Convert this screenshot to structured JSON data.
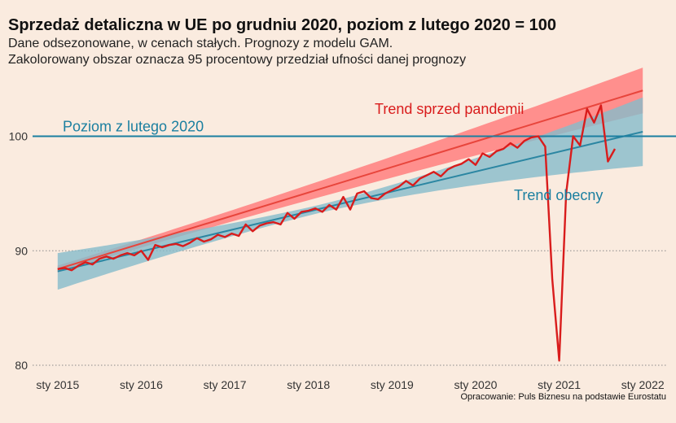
{
  "title": "Sprzedaż detaliczna w UE po grudniu 2020, poziom z lutego 2020 = 100",
  "subtitle_line1": "Dane odsezonowane, w cenach stałych. Prognozy z modelu GAM.",
  "subtitle_line2": "Zakolorowany obszar oznacza 95 procentowy przedział ufności danej prognozy",
  "caption": "Opracowanie: Puls Biznesu na podstawie Eurostatu",
  "chart_data": {
    "type": "line",
    "ylim": [
      79.5,
      104.8
    ],
    "y_ticks": [
      80,
      90,
      100
    ],
    "x_tick_labels": [
      "sty 2015",
      "sty 2016",
      "sty 2017",
      "sty 2018",
      "sty 2019",
      "sty 2020",
      "sty 2021",
      "sty 2022"
    ],
    "x_tick_years": [
      2015,
      2016,
      2017,
      2018,
      2019,
      2020,
      2021,
      2022
    ],
    "xlim": [
      2014.7,
      2022.3
    ],
    "grid": "horizontal dotted at y ticks",
    "reference_line": {
      "label": "Poziom z lutego 2020",
      "value": 100
    },
    "annotations": {
      "pre_pandemic": "Trend sprzed pandemii",
      "current": "Trend obecny"
    },
    "colors": {
      "background": "#faebdf",
      "actual": "#d91c1c",
      "pre_trend": "#e8453c",
      "pre_band": "#ff7f7f",
      "current_trend": "#2b86a2",
      "current_band": "#86bccb",
      "reference": "#1b7fa0"
    },
    "actual_series": [
      [
        2015.0,
        88.4
      ],
      [
        2015.083,
        88.5
      ],
      [
        2015.167,
        88.3
      ],
      [
        2015.25,
        88.7
      ],
      [
        2015.333,
        89.0
      ],
      [
        2015.417,
        88.8
      ],
      [
        2015.5,
        89.3
      ],
      [
        2015.583,
        89.5
      ],
      [
        2015.667,
        89.3
      ],
      [
        2015.75,
        89.6
      ],
      [
        2015.833,
        89.8
      ],
      [
        2015.917,
        89.6
      ],
      [
        2016.0,
        90.0
      ],
      [
        2016.083,
        89.2
      ],
      [
        2016.167,
        90.5
      ],
      [
        2016.25,
        90.3
      ],
      [
        2016.333,
        90.5
      ],
      [
        2016.417,
        90.6
      ],
      [
        2016.5,
        90.4
      ],
      [
        2016.583,
        90.7
      ],
      [
        2016.667,
        91.1
      ],
      [
        2016.75,
        90.8
      ],
      [
        2016.833,
        91.0
      ],
      [
        2016.917,
        91.4
      ],
      [
        2017.0,
        91.2
      ],
      [
        2017.083,
        91.5
      ],
      [
        2017.167,
        91.3
      ],
      [
        2017.25,
        92.3
      ],
      [
        2017.333,
        91.7
      ],
      [
        2017.417,
        92.2
      ],
      [
        2017.5,
        92.4
      ],
      [
        2017.583,
        92.5
      ],
      [
        2017.667,
        92.3
      ],
      [
        2017.75,
        93.3
      ],
      [
        2017.833,
        92.8
      ],
      [
        2017.917,
        93.4
      ],
      [
        2018.0,
        93.5
      ],
      [
        2018.083,
        93.7
      ],
      [
        2018.167,
        93.4
      ],
      [
        2018.25,
        94.0
      ],
      [
        2018.333,
        93.6
      ],
      [
        2018.417,
        94.7
      ],
      [
        2018.5,
        93.6
      ],
      [
        2018.583,
        95.0
      ],
      [
        2018.667,
        95.2
      ],
      [
        2018.75,
        94.6
      ],
      [
        2018.833,
        94.5
      ],
      [
        2018.917,
        95.0
      ],
      [
        2019.0,
        95.3
      ],
      [
        2019.083,
        95.6
      ],
      [
        2019.167,
        96.1
      ],
      [
        2019.25,
        95.7
      ],
      [
        2019.333,
        96.3
      ],
      [
        2019.417,
        96.6
      ],
      [
        2019.5,
        96.9
      ],
      [
        2019.583,
        96.5
      ],
      [
        2019.667,
        97.1
      ],
      [
        2019.75,
        97.4
      ],
      [
        2019.833,
        97.6
      ],
      [
        2019.917,
        98.0
      ],
      [
        2020.0,
        97.5
      ],
      [
        2020.083,
        98.5
      ],
      [
        2020.167,
        98.2
      ],
      [
        2020.25,
        98.7
      ],
      [
        2020.333,
        98.9
      ],
      [
        2020.417,
        99.4
      ],
      [
        2020.5,
        99.0
      ],
      [
        2020.583,
        99.6
      ],
      [
        2020.667,
        99.9
      ],
      [
        2020.75,
        100.0
      ],
      [
        2020.833,
        99.1
      ],
      [
        2020.917,
        87.5
      ],
      [
        2021.0,
        80.4
      ],
      [
        2021.083,
        95.0
      ],
      [
        2021.167,
        100.0
      ],
      [
        2021.25,
        99.2
      ],
      [
        2021.333,
        102.4
      ],
      [
        2021.417,
        101.2
      ],
      [
        2021.5,
        102.7
      ],
      [
        2021.583,
        97.8
      ],
      [
        2021.667,
        98.9
      ]
    ],
    "pre_pandemic_trend": {
      "x_start": 2015.0,
      "x_end": 2022.0,
      "y_start": 88.4,
      "y_end": 104.0,
      "band_half_width_start": 0.3,
      "band_half_width_end": 2.0
    },
    "current_trend": {
      "x_start": 2015.0,
      "x_end": 2022.0,
      "y_start": 88.2,
      "y_end": 100.4,
      "band_half_width_start": 1.6,
      "band_half_width_end": 3.0
    }
  }
}
